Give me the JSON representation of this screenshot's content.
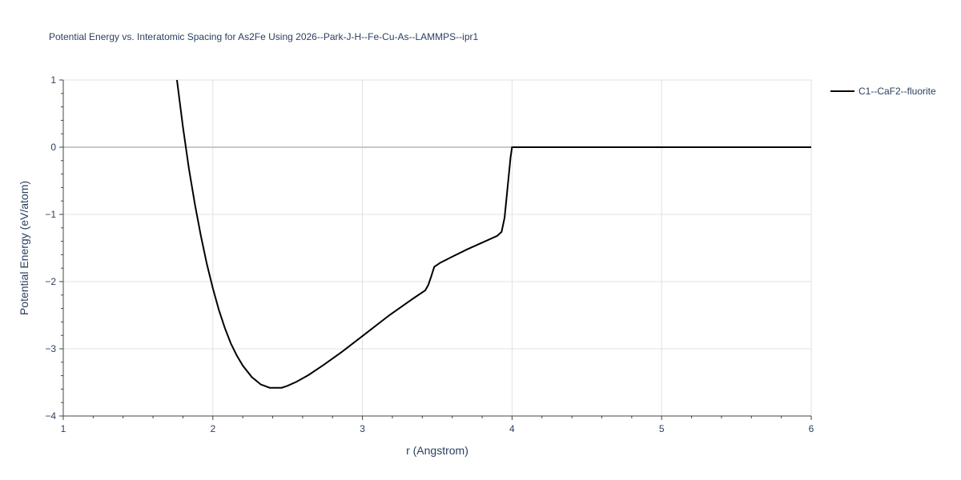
{
  "chart_data": {
    "type": "line",
    "title": "Potential Energy vs. Interatomic Spacing for As2Fe Using 2026--Park-J-H--Fe-Cu-As--LAMMPS--ipr1",
    "xlabel": "r (Angstrom)",
    "ylabel": "Potential Energy (eV/atom)",
    "xlim": [
      1,
      6
    ],
    "ylim": [
      -4,
      1
    ],
    "xticks": [
      1,
      2,
      3,
      4,
      5,
      6
    ],
    "xtick_labels": [
      "1",
      "2",
      "3",
      "4",
      "5",
      "6"
    ],
    "yticks": [
      -4,
      -3,
      -2,
      -1,
      0,
      1
    ],
    "ytick_labels": [
      "−4",
      "−3",
      "−2",
      "−1",
      "0",
      "1"
    ],
    "grid": true,
    "legend_position": "top-right",
    "series": [
      {
        "name": "C1--CaF2--fluorite",
        "color": "#000000",
        "x": [
          1.76,
          1.8,
          1.84,
          1.88,
          1.92,
          1.96,
          2.0,
          2.04,
          2.08,
          2.12,
          2.16,
          2.2,
          2.26,
          2.32,
          2.38,
          2.42,
          2.46,
          2.5,
          2.56,
          2.64,
          2.74,
          2.86,
          3.0,
          3.18,
          3.34,
          3.42,
          3.44,
          3.46,
          3.48,
          3.52,
          3.6,
          3.7,
          3.8,
          3.9,
          3.93,
          3.95,
          3.97,
          3.99,
          4.0,
          4.2,
          4.6,
          5.0,
          5.5,
          6.0
        ],
        "y": [
          1.0,
          0.3,
          -0.32,
          -0.85,
          -1.32,
          -1.74,
          -2.1,
          -2.42,
          -2.69,
          -2.92,
          -3.1,
          -3.25,
          -3.42,
          -3.53,
          -3.58,
          -3.58,
          -3.58,
          -3.55,
          -3.49,
          -3.39,
          -3.24,
          -3.05,
          -2.81,
          -2.5,
          -2.25,
          -2.13,
          -2.05,
          -1.92,
          -1.78,
          -1.72,
          -1.63,
          -1.52,
          -1.42,
          -1.32,
          -1.26,
          -1.05,
          -0.6,
          -0.15,
          0.0,
          0.0,
          0.0,
          0.0,
          0.0,
          0.0
        ]
      }
    ]
  }
}
